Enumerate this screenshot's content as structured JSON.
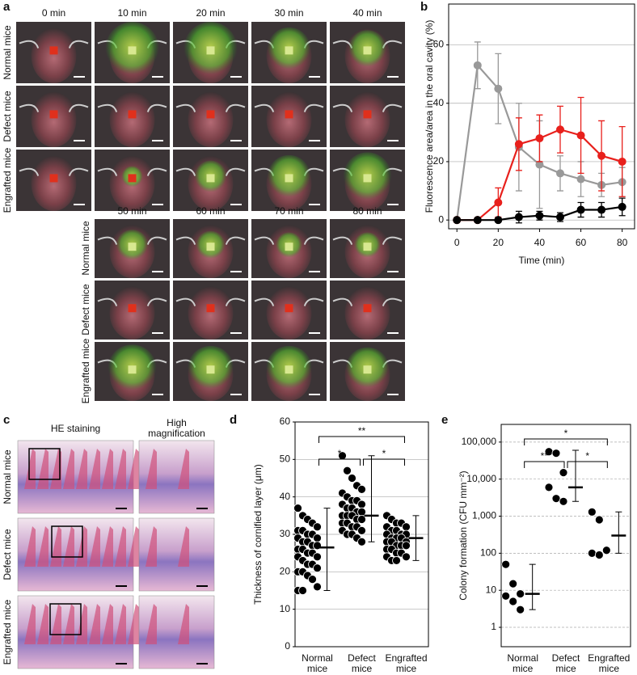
{
  "panel_a": {
    "label": "a",
    "times": [
      "0 min",
      "10 min",
      "20 min",
      "30 min",
      "40 min",
      "50 min",
      "60 min",
      "70 min",
      "80 min"
    ],
    "rows": [
      "Normal mice",
      "Defect mice",
      "Engrafted mice"
    ]
  },
  "panel_c": {
    "label": "c",
    "columns": [
      "HE staining",
      "High magnification"
    ],
    "rows": [
      "Normal mice",
      "Defect mice",
      "Engrafted mice"
    ]
  },
  "chart_data": [
    {
      "type": "line",
      "label": "b",
      "xlabel": "Time (min)",
      "ylabel": "Fluorescence area/area in the oral cavity (%)",
      "x": [
        0,
        10,
        20,
        30,
        40,
        50,
        60,
        70,
        80
      ],
      "xlim": [
        -4,
        86
      ],
      "xticks": [
        0,
        20,
        40,
        60,
        80
      ],
      "ylim": [
        -3,
        74
      ],
      "yticks": [
        0,
        20,
        40,
        60
      ],
      "grid": true,
      "series": [
        {
          "color": "#999999",
          "values": [
            0,
            53,
            45,
            25,
            19,
            16,
            14,
            12,
            13
          ],
          "errors": [
            0,
            8,
            12,
            15,
            15,
            6,
            6,
            4,
            5
          ]
        },
        {
          "color": "#e8201c",
          "values": [
            0,
            0,
            6,
            26,
            28,
            31,
            29,
            22,
            20
          ],
          "errors": [
            0,
            0,
            5,
            9,
            8,
            8,
            13,
            12,
            12
          ]
        },
        {
          "color": "#000000",
          "values": [
            0,
            0,
            0,
            1,
            1.5,
            1,
            3.5,
            3.5,
            4.5
          ],
          "errors": [
            0,
            0,
            0,
            2,
            1.5,
            1.5,
            2.5,
            2.5,
            3
          ]
        }
      ]
    },
    {
      "type": "strip",
      "label": "d",
      "ylabel": "Thickness of cornified layer (μm)",
      "categories": [
        "Normal mice",
        "Defect mice",
        "Engrafted mice"
      ],
      "ylim": [
        0,
        60
      ],
      "yticks": [
        0,
        10,
        20,
        30,
        40,
        50,
        60
      ],
      "grid": true,
      "color": "#000000",
      "values": [
        [
          37,
          35,
          34,
          33,
          32,
          31,
          31,
          30,
          30,
          29,
          29,
          28,
          28,
          27,
          27,
          26,
          26,
          25,
          25,
          24,
          24,
          23,
          22,
          22,
          21,
          20,
          20,
          19,
          18,
          16,
          15,
          15
        ],
        [
          51,
          47,
          45,
          43,
          42,
          41,
          40,
          39,
          39,
          38,
          38,
          37,
          37,
          36,
          36,
          35,
          35,
          35,
          34,
          34,
          33,
          33,
          32,
          32,
          31,
          31,
          30,
          30,
          29,
          28
        ],
        [
          35,
          34,
          33,
          33,
          32,
          32,
          31,
          31,
          30,
          30,
          30,
          29,
          29,
          29,
          28,
          28,
          28,
          27,
          27,
          27,
          26,
          26,
          25,
          25,
          24,
          24,
          23,
          23
        ]
      ],
      "means": [
        26.5,
        35,
        29
      ],
      "error_bars": [
        [
          15,
          37
        ],
        [
          28,
          51
        ],
        [
          23,
          35
        ]
      ],
      "annotations": [
        "**",
        "*",
        "*"
      ]
    },
    {
      "type": "strip",
      "label": "e",
      "ylabel": "Colony formation (CFU mm⁻²)",
      "categories": [
        "Normal mice",
        "Defect mice",
        "Engrafted mice"
      ],
      "log_scale": true,
      "ylim": [
        0.3,
        300000
      ],
      "yticks": [
        1,
        10,
        100,
        {
          "value": 1000,
          "label": "1,000"
        },
        {
          "value": 10000,
          "label": "10,000"
        },
        {
          "value": 100000,
          "label": "100,000"
        }
      ],
      "grid": true,
      "color": "#000000",
      "values": [
        [
          50,
          15,
          8,
          7,
          5,
          3
        ],
        [
          55000,
          50000,
          15000,
          6000,
          3000,
          2500
        ],
        [
          1300,
          800,
          120,
          100,
          90
        ]
      ],
      "means": [
        8,
        6000,
        300
      ],
      "error_bars": [
        [
          3,
          50
        ],
        [
          2500,
          60000
        ],
        [
          100,
          1300
        ]
      ],
      "annotations": [
        "*",
        "**",
        "*"
      ]
    }
  ]
}
